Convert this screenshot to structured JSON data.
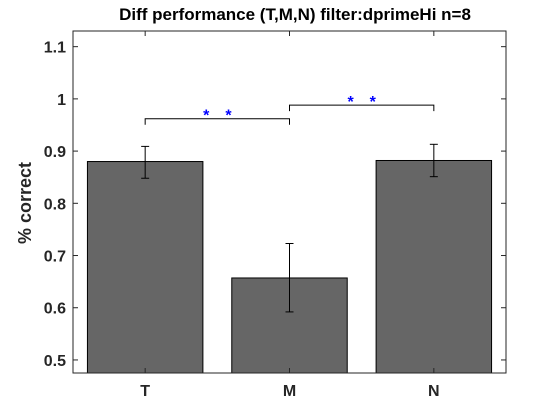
{
  "chart_data": {
    "type": "bar",
    "title": "Diff performance (T,M,N) filter:dprimeHi n=8",
    "xlabel": "",
    "ylabel": "% correct",
    "categories": [
      "T",
      "M",
      "N"
    ],
    "values": [
      0.88,
      0.657,
      0.882
    ],
    "error_low": [
      0.848,
      0.592,
      0.851
    ],
    "error_high": [
      0.909,
      0.723,
      0.913
    ],
    "ylim": [
      0.475,
      1.13
    ],
    "yticks": [
      0.5,
      0.6,
      0.7,
      0.8,
      0.9,
      1,
      1.1
    ],
    "ytick_labels": [
      "0.5",
      "0.6",
      "0.7",
      "0.8",
      "0.9",
      "1",
      "1.1"
    ],
    "grid": false,
    "bar_color": "#666666",
    "significance": [
      {
        "from": "T",
        "to": "M",
        "y": 0.962,
        "label": "* *",
        "color": "#0000ff"
      },
      {
        "from": "M",
        "to": "N",
        "y": 0.988,
        "label": "* *",
        "color": "#0000ff"
      }
    ]
  }
}
